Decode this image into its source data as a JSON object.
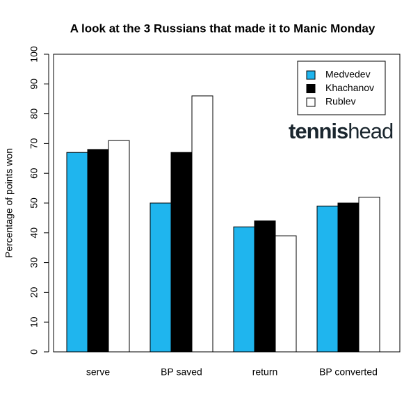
{
  "chart_data": {
    "type": "bar",
    "title": "A look at the 3 Russians that made it to Manic Monday",
    "y_label": "Percentage of points won",
    "categories": [
      "serve",
      "BP saved",
      "return",
      "BP converted"
    ],
    "series": [
      {
        "name": "Medvedev",
        "color": "#1fb5ee",
        "values": [
          67,
          50,
          42,
          49
        ]
      },
      {
        "name": "Khachanov",
        "color": "#000000",
        "values": [
          68,
          67,
          44,
          50
        ]
      },
      {
        "name": "Rublev",
        "color": "#ffffff",
        "values": [
          71,
          86,
          39,
          52
        ]
      }
    ],
    "ylim": [
      0,
      100
    ],
    "yticks": [
      0,
      10,
      20,
      30,
      40,
      50,
      60,
      70,
      80,
      90,
      100
    ],
    "legend": "topright",
    "logo": [
      "tennis",
      "head"
    ]
  }
}
